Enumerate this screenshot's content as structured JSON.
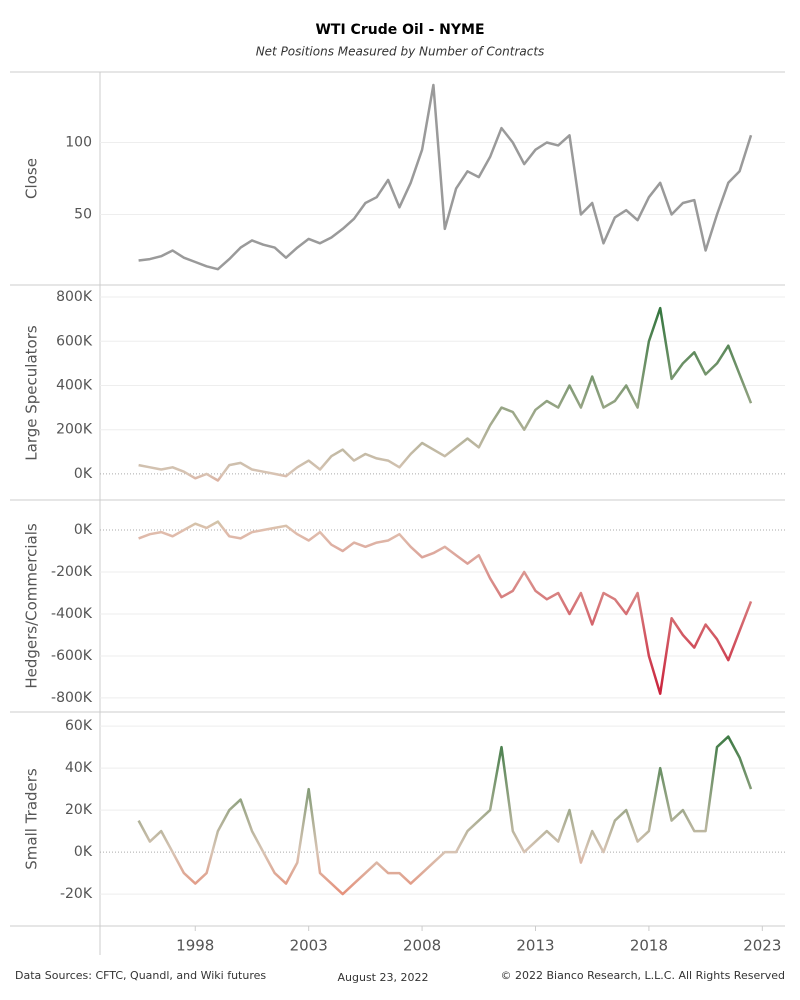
{
  "chart_data": {
    "type": "line",
    "title": "WTI Crude Oil - NYME",
    "subtitle": "Net Positions Measured by Number of Contracts",
    "x": [
      1995.5,
      1996,
      1996.5,
      1997,
      1997.5,
      1998,
      1998.5,
      1999,
      1999.5,
      2000,
      2000.5,
      2001,
      2001.5,
      2002,
      2002.5,
      2003,
      2003.5,
      2004,
      2004.5,
      2005,
      2005.5,
      2006,
      2006.5,
      2007,
      2007.5,
      2008,
      2008.5,
      2009,
      2009.5,
      2010,
      2010.5,
      2011,
      2011.5,
      2012,
      2012.5,
      2013,
      2013.5,
      2014,
      2014.5,
      2015,
      2015.5,
      2016,
      2016.5,
      2017,
      2017.5,
      2018,
      2018.5,
      2019,
      2019.5,
      2020,
      2020.5,
      2021,
      2021.5,
      2022,
      2022.5
    ],
    "xlim": [
      1993.8,
      2024
    ],
    "xticks": [
      1998,
      2003,
      2008,
      2013,
      2018,
      2023
    ],
    "panels": [
      {
        "y_label": "Close",
        "color": "#9a9a9a",
        "values": [
          18,
          19,
          21,
          25,
          20,
          17,
          14,
          12,
          19,
          27,
          32,
          29,
          27,
          20,
          27,
          33,
          30,
          34,
          40,
          47,
          58,
          62,
          74,
          55,
          72,
          95,
          140,
          40,
          68,
          80,
          76,
          90,
          110,
          100,
          85,
          95,
          100,
          98,
          105,
          50,
          58,
          30,
          48,
          53,
          46,
          62,
          72,
          50,
          58,
          60,
          25,
          50,
          72,
          80,
          105
        ],
        "ylim": [
          1,
          149
        ],
        "yticks": [
          50,
          100
        ]
      },
      {
        "y_label": "Large Speculators",
        "colors": {
          "positive": "#1e6b2e",
          "zero": "#d8c4b4",
          "negative": "#e57a6a"
        },
        "values": [
          40000,
          30000,
          20000,
          30000,
          10000,
          -20000,
          0,
          -30000,
          40000,
          50000,
          20000,
          10000,
          0,
          -10000,
          30000,
          60000,
          20000,
          80000,
          110000,
          60000,
          90000,
          70000,
          60000,
          30000,
          90000,
          140000,
          110000,
          80000,
          120000,
          160000,
          120000,
          220000,
          300000,
          280000,
          200000,
          290000,
          330000,
          300000,
          400000,
          300000,
          440000,
          300000,
          330000,
          400000,
          300000,
          600000,
          750000,
          430000,
          500000,
          550000,
          450000,
          500000,
          580000,
          450000,
          320000
        ],
        "ylim": [
          -118000,
          850000
        ],
        "yticks": [
          {
            "value": 0,
            "label": "0K"
          },
          {
            "value": 200000,
            "label": "200K"
          },
          {
            "value": 400000,
            "label": "400K"
          },
          {
            "value": 600000,
            "label": "600K"
          },
          {
            "value": 800000,
            "label": "800K"
          }
        ]
      },
      {
        "y_label": "Hedgers/Commercials",
        "colors": {
          "positive": "#a8cf98",
          "zero": "#e0bfae",
          "negative": "#c8102e"
        },
        "values": [
          -40000,
          -20000,
          -10000,
          -30000,
          0,
          30000,
          10000,
          40000,
          -30000,
          -40000,
          -10000,
          0,
          10000,
          20000,
          -20000,
          -50000,
          -10000,
          -70000,
          -100000,
          -60000,
          -80000,
          -60000,
          -50000,
          -20000,
          -80000,
          -130000,
          -110000,
          -80000,
          -120000,
          -160000,
          -120000,
          -230000,
          -320000,
          -290000,
          -200000,
          -290000,
          -330000,
          -300000,
          -400000,
          -300000,
          -450000,
          -300000,
          -330000,
          -400000,
          -300000,
          -600000,
          -780000,
          -420000,
          -500000,
          -560000,
          -450000,
          -520000,
          -620000,
          -480000,
          -340000
        ],
        "ylim": [
          -867000,
          143000
        ],
        "yticks": [
          {
            "value": 0,
            "label": "0K"
          },
          {
            "value": -200000,
            "label": "-200K"
          },
          {
            "value": -400000,
            "label": "-400K"
          },
          {
            "value": -600000,
            "label": "-600K"
          },
          {
            "value": -800000,
            "label": "-800K"
          }
        ]
      },
      {
        "y_label": "Small Traders",
        "colors": {
          "positive": "#1e6b2e",
          "zero": "#d8c4b4",
          "negative": "#f06a50"
        },
        "values": [
          15000,
          5000,
          10000,
          0,
          -10000,
          -15000,
          -10000,
          10000,
          20000,
          25000,
          10000,
          0,
          -10000,
          -15000,
          -5000,
          30000,
          -10000,
          -15000,
          -20000,
          -15000,
          -10000,
          -5000,
          -10000,
          -10000,
          -15000,
          -10000,
          -5000,
          0,
          0,
          10000,
          15000,
          20000,
          50000,
          10000,
          0,
          5000,
          10000,
          5000,
          20000,
          -5000,
          10000,
          0,
          15000,
          20000,
          5000,
          10000,
          40000,
          15000,
          20000,
          10000,
          10000,
          50000,
          55000,
          45000,
          30000
        ],
        "ylim": [
          -35200,
          66700
        ],
        "yticks": [
          {
            "value": -20000,
            "label": "-20K"
          },
          {
            "value": 0,
            "label": "0K"
          },
          {
            "value": 20000,
            "label": "20K"
          },
          {
            "value": 40000,
            "label": "40K"
          },
          {
            "value": 60000,
            "label": "60K"
          }
        ]
      }
    ],
    "footer": {
      "sources": "Data Sources: CFTC, Quandl, and Wiki futures",
      "date": "August 23, 2022",
      "copyright": "© 2022 Bianco Research, L.L.C. All Rights Reserved"
    }
  }
}
